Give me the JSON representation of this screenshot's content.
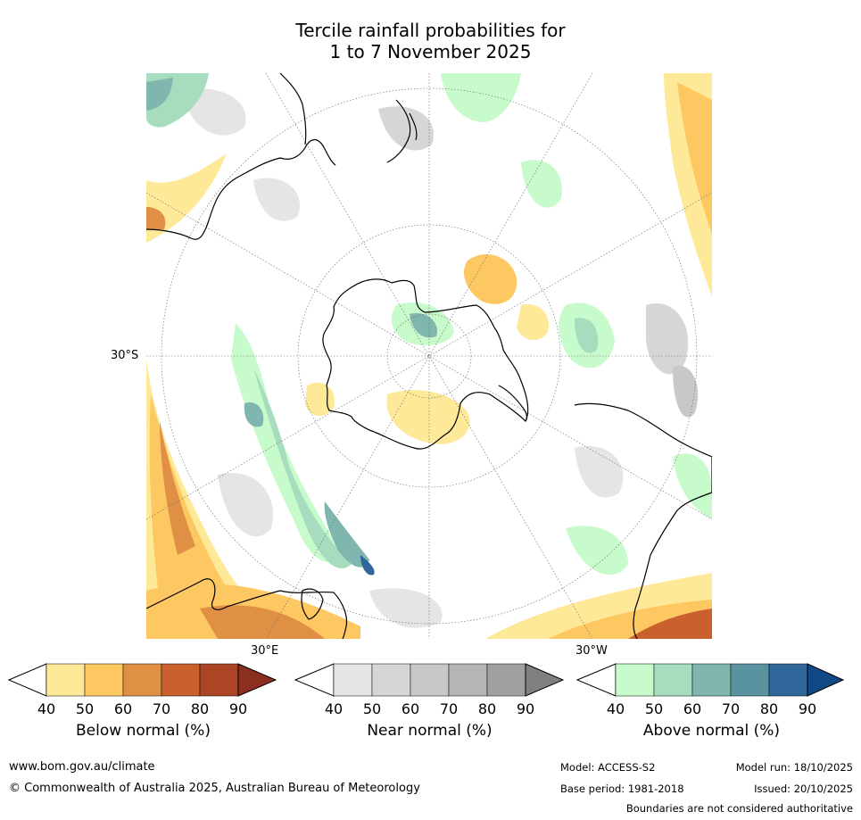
{
  "title": {
    "line1": "Tercile rainfall probabilities for",
    "line2": "1 to 7 November 2025"
  },
  "map": {
    "projection": "south-polar-stereographic",
    "lat_label": "30°S",
    "lon_labels": [
      "30°E",
      "30°W"
    ],
    "land_outline_color": "#000000",
    "grid_color": "#666666"
  },
  "legends": [
    {
      "id": "below",
      "title": "Below normal (%)",
      "ticks": [
        "40",
        "50",
        "60",
        "70",
        "80",
        "90"
      ],
      "low_color": "#ffffff",
      "colors": [
        "#fee999",
        "#fdc861",
        "#e09045",
        "#c9602e",
        "#ac4526"
      ],
      "high_color": "#8b3021"
    },
    {
      "id": "near",
      "title": "Near normal (%)",
      "ticks": [
        "40",
        "50",
        "60",
        "70",
        "80",
        "90"
      ],
      "low_color": "#ffffff",
      "colors": [
        "#e5e5e5",
        "#d6d6d6",
        "#c8c8c8",
        "#b5b5b5",
        "#a0a0a0"
      ],
      "high_color": "#808080"
    },
    {
      "id": "above",
      "title": "Above normal (%)",
      "ticks": [
        "40",
        "50",
        "60",
        "70",
        "80",
        "90"
      ],
      "low_color": "#ffffff",
      "colors": [
        "#c7fbcb",
        "#a7dcbf",
        "#7fb6ae",
        "#5a93a0",
        "#30669a"
      ],
      "high_color": "#114986"
    }
  ],
  "footer": {
    "website": "www.bom.gov.au/climate",
    "copyright": "© Commonwealth of Australia 2025, Australian Bureau of Meteorology",
    "model": "Model: ACCESS-S2",
    "base_period": "Base period: 1981-2018",
    "model_run": "Model run: 18/10/2025",
    "issued": "Issued: 20/10/2025",
    "disclaimer": "Boundaries are not considered authoritative"
  }
}
